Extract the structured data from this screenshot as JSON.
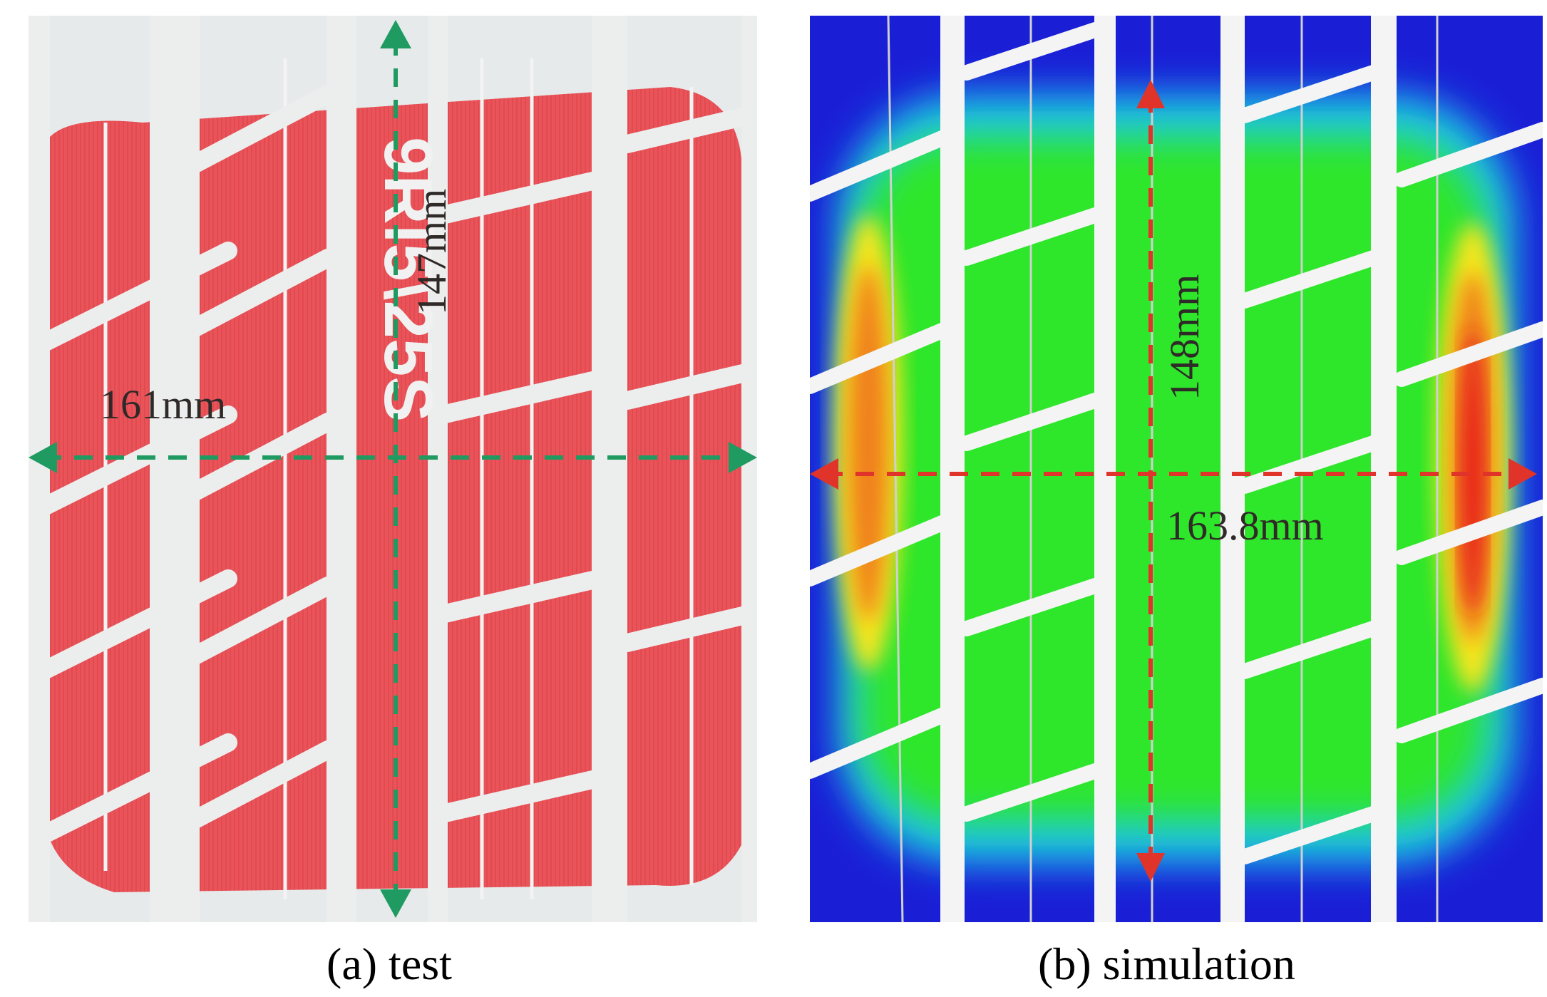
{
  "figure": {
    "panel_a": {
      "caption": "(a) test",
      "width_measure": "161mm",
      "length_measure": "147mm",
      "sidewall_text": "9Rl5\\25S",
      "arrow_color": "#1f9b62",
      "print_color": "#e9545a",
      "paper_color": "#e6eaea"
    },
    "panel_b": {
      "caption": "(b) simulation",
      "width_measure": "163.8mm",
      "length_measure": "148mm",
      "arrow_color": "#e0332a",
      "color_scale": [
        "#1a1fd6",
        "#1fc8e8",
        "#2ee62a",
        "#f5e61a",
        "#f0801a",
        "#e8201a"
      ]
    }
  }
}
